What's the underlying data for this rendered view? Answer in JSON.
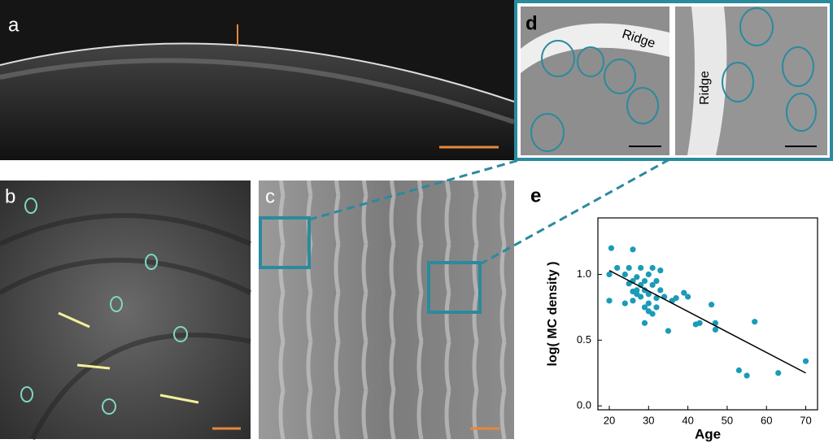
{
  "panel_labels": [
    "a",
    "b",
    "c",
    "d",
    "e"
  ],
  "ridge_labels": [
    "Ridge",
    "Ridge"
  ],
  "chart_data": {
    "type": "scatter",
    "xlabel": "Age",
    "ylabel": "log( MC density )",
    "color": "#1a9bb8",
    "x": [
      20.5,
      26,
      20,
      20,
      22,
      24,
      25,
      25,
      26,
      26,
      27,
      27,
      28,
      28,
      28,
      29,
      29,
      29,
      30,
      30,
      30,
      31,
      31,
      31,
      32,
      32,
      33,
      33,
      34,
      35,
      36,
      37,
      39,
      40,
      42,
      43,
      46,
      47,
      47,
      53,
      55,
      57,
      63,
      70,
      24,
      27,
      30,
      32,
      26,
      29
    ],
    "y": [
      1.2,
      1.19,
      1.0,
      0.8,
      1.05,
      1.0,
      0.93,
      1.05,
      0.95,
      0.8,
      0.98,
      0.85,
      0.92,
      0.83,
      1.05,
      0.88,
      0.75,
      0.63,
      1.0,
      0.85,
      0.78,
      1.05,
      0.92,
      0.7,
      0.95,
      0.82,
      1.03,
      0.88,
      0.83,
      0.57,
      0.8,
      0.82,
      0.86,
      0.83,
      0.62,
      0.63,
      0.77,
      0.63,
      0.58,
      0.27,
      0.23,
      0.64,
      0.25,
      0.34,
      0.78,
      0.88,
      0.72,
      0.75,
      0.87,
      0.95
    ],
    "trendline": {
      "x": [
        20,
        70
      ],
      "y": [
        1.03,
        0.25
      ],
      "color": "#000000"
    },
    "xlim": [
      17.1,
      73
    ],
    "ylim": [
      -0.03,
      1.43
    ],
    "xticks": [
      20,
      30,
      40,
      50,
      60,
      70
    ],
    "yticks": [
      {
        "value": 0,
        "label": "0.0"
      },
      0.5,
      {
        "value": 1,
        "label": "1.0"
      }
    ]
  }
}
